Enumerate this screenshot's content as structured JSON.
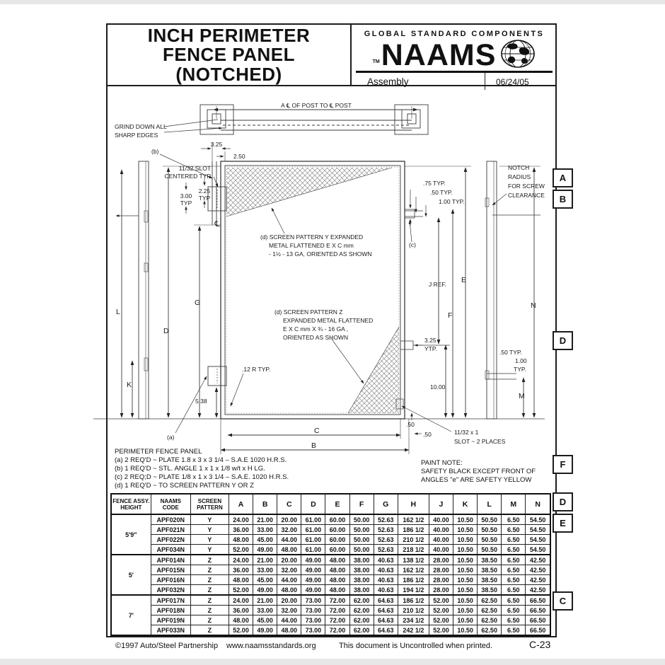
{
  "header": {
    "title_line1": "INCH PERIMETER",
    "title_line2": "FENCE PANEL",
    "title_line3": "(NOTCHED)",
    "brand_top": "GLOBAL STANDARD COMPONENTS",
    "brand": "NAAMS",
    "brand_tm": "TM",
    "doc_type": "Assembly",
    "date": "06/24/05"
  },
  "drawing": {
    "zones": [
      "A",
      "B",
      "D",
      "F",
      "D",
      "E",
      "C"
    ],
    "labels": {
      "a_post": "A ℄ OF POST TO ℄ POST",
      "grind1": "GRIND DOWN ALL",
      "grind2": "SHARP EDGES",
      "b_ref": "(b)",
      "a_ref": "(a)",
      "c_ref": "(c)",
      "slot_top1": "11/32 SLOT",
      "slot_top2": "CENTERED TYP",
      "d325": "3.25",
      "d250": "2.50",
      "d300": "3.00",
      "d300u": "TYP",
      "d225": "2.25",
      "d225u": "TYP",
      "cl": "℄",
      "d75": ".75 TYP.",
      "d50": ".50 TYP.",
      "d100": "1.00 TYP.",
      "notch1": "NOTCH",
      "notch2": "RADIUS",
      "notch3": "FOR SCREW",
      "notch4": "CLEARANCE",
      "py1": "(d) SCREEN PATTERN Y EXPANDED",
      "py2": "METAL FLATTENED E X C mm",
      "py3": "- 1½ - 13 GA, ORIENTED AS SHOWN",
      "pz1": "(d) SCREEN PATTERN Z",
      "pz2": "EXPANDED METAL FLATTENED",
      "pz3": "E X C mm X ¾ - 16 GA ,",
      "pz4": "ORIENTED AS SHOWN",
      "jref": "J REF.",
      "dimD": "D",
      "dimG": "G",
      "dimL": "L",
      "dimK": "K",
      "dimE": "E",
      "dimF": "F",
      "dimN": "N",
      "dimM": "M",
      "dimC": "C",
      "dimB": "B",
      "r12": ".12 R TYP.",
      "d538": "5.38",
      "d1000": "10.00",
      "d325b": "3.25",
      "ytp": "YTP.",
      "r50": ".50 TYP.",
      "r100a": "1.00",
      "r100b": "TYP.",
      "s50a": ".50",
      "s50b": ".50",
      "slot2a": "11/32 x 1",
      "slot2b": "SLOT ~ 2 PLACES"
    }
  },
  "notes": {
    "title": "PERIMETER FENCE PANEL",
    "a": "(a) 2 REQ'D ~ PLATE 1.8 x 3 x 3 1/4 – S.A.E 1020 H.R.S.",
    "b": "(b) 1 REQ'D ~ STL. ANGLE 1 x 1 x 1/8 w/t x H LG.",
    "c": "(c) 2 REQ;D ~ PLATE 1/8 x 1 x 3 1/4 – S.A.E. 1020 H.R.S.",
    "d": "(d) 1 REQ'D ~ TO SCREEN PATTERN Y OR Z"
  },
  "paint_note": {
    "l1": "PAINT NOTE:",
    "l2": "SAFETY BLACK EXCEPT FRONT OF",
    "l3": "ANGLES \"e\" ARE SAFETY YELLOW"
  },
  "table": {
    "col_height": "FENCE ASSY.\nHEIGHT",
    "col_code": "NAAMS\nCODE",
    "col_pattern": "SCREEN\nPATTERN",
    "dim_cols": [
      "A",
      "B",
      "C",
      "D",
      "E",
      "F",
      "G",
      "H",
      "J",
      "K",
      "L",
      "M",
      "N"
    ],
    "groups": [
      {
        "height": "5'9\"",
        "rows": [
          [
            "APF020N",
            "Y",
            "24.00",
            "21.00",
            "20.00",
            "61.00",
            "60.00",
            "50.00",
            "52.63",
            "162 1/2",
            "40.00",
            "10.50",
            "50.50",
            "6.50",
            "54.50"
          ],
          [
            "APF021N",
            "Y",
            "36.00",
            "33.00",
            "32.00",
            "61.00",
            "60.00",
            "50.00",
            "52.63",
            "186 1/2",
            "40.00",
            "10.50",
            "50.50",
            "6.50",
            "54.50"
          ],
          [
            "APF022N",
            "Y",
            "48.00",
            "45.00",
            "44.00",
            "61.00",
            "60.00",
            "50.00",
            "52.63",
            "210 1/2",
            "40.00",
            "10.50",
            "50.50",
            "6.50",
            "54.50"
          ],
          [
            "APF034N",
            "Y",
            "52.00",
            "49.00",
            "48.00",
            "61.00",
            "60.00",
            "50.00",
            "52.63",
            "218 1/2",
            "40.00",
            "10.50",
            "50.50",
            "6.50",
            "54.50"
          ]
        ]
      },
      {
        "height": "5'",
        "rows": [
          [
            "APF014N",
            "Z",
            "24.00",
            "21.00",
            "20.00",
            "49.00",
            "48.00",
            "38.00",
            "40.63",
            "138 1/2",
            "28.00",
            "10.50",
            "38.50",
            "6.50",
            "42.50"
          ],
          [
            "APF015N",
            "Z",
            "36.00",
            "33.00",
            "32.00",
            "49.00",
            "48.00",
            "38.00",
            "40.63",
            "162 1/2",
            "28.00",
            "10.50",
            "38.50",
            "6.50",
            "42.50"
          ],
          [
            "APF016N",
            "Z",
            "48.00",
            "45.00",
            "44.00",
            "49.00",
            "48.00",
            "38.00",
            "40.63",
            "186 1/2",
            "28.00",
            "10.50",
            "38.50",
            "6.50",
            "42.50"
          ],
          [
            "APF032N",
            "Z",
            "52.00",
            "49.00",
            "48.00",
            "49.00",
            "48.00",
            "38.00",
            "40.63",
            "194 1/2",
            "28.00",
            "10.50",
            "38.50",
            "6.50",
            "42.50"
          ]
        ]
      },
      {
        "height": "7'",
        "rows": [
          [
            "APF017N",
            "Z",
            "24.00",
            "21.00",
            "20.00",
            "73.00",
            "72.00",
            "62.00",
            "64.63",
            "186 1/2",
            "52.00",
            "10.50",
            "62.50",
            "6.50",
            "66.50"
          ],
          [
            "APF018N",
            "Z",
            "36.00",
            "33.00",
            "32.00",
            "73.00",
            "72.00",
            "62.00",
            "64.63",
            "210 1/2",
            "52.00",
            "10.50",
            "62.50",
            "6.50",
            "66.50"
          ],
          [
            "APF019N",
            "Z",
            "48.00",
            "45.00",
            "44.00",
            "73.00",
            "72.00",
            "62.00",
            "64.63",
            "234 1/2",
            "52.00",
            "10.50",
            "62.50",
            "6.50",
            "66.50"
          ],
          [
            "APF033N",
            "Z",
            "52.00",
            "49.00",
            "48.00",
            "73.00",
            "72.00",
            "62.00",
            "64.63",
            "242 1/2",
            "52.00",
            "10.50",
            "62.50",
            "6.50",
            "66.50"
          ]
        ]
      }
    ]
  },
  "footer": {
    "copyright": "©1997 Auto/Steel Partnership",
    "url": "www.naamsstandards.org",
    "note": "This document is Uncontrolled when printed.",
    "page": "C-23"
  }
}
